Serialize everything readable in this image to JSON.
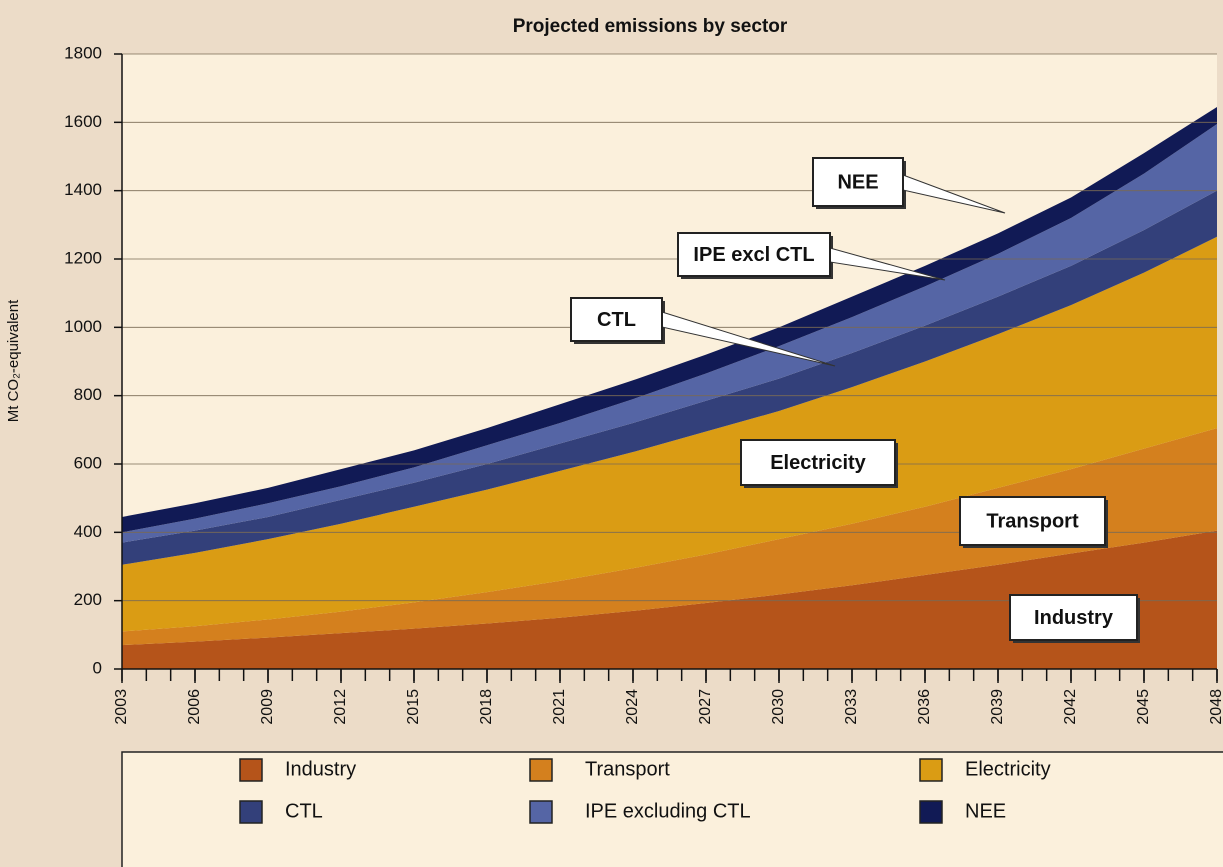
{
  "chart_data": {
    "type": "stacked_area",
    "title": "Projected emissions by sector",
    "y_label": "Mt CO₂-equivalent",
    "x": [
      2003,
      2006,
      2009,
      2012,
      2015,
      2018,
      2021,
      2024,
      2027,
      2030,
      2033,
      2036,
      2039,
      2042,
      2045,
      2048
    ],
    "xlim": [
      2003,
      2048
    ],
    "xticks": [
      2003,
      2006,
      2009,
      2012,
      2015,
      2018,
      2021,
      2024,
      2027,
      2030,
      2033,
      2036,
      2039,
      2042,
      2045,
      2048
    ],
    "ylim": [
      0,
      1800
    ],
    "yticks": [
      0,
      200,
      400,
      600,
      800,
      1000,
      1200,
      1400,
      1600,
      1800
    ],
    "grid": true,
    "series": [
      {
        "name": "Industry",
        "color": "#b5541a",
        "values": [
          70,
          80,
          92,
          105,
          118,
          133,
          150,
          170,
          193,
          218,
          245,
          275,
          305,
          338,
          370,
          405
        ]
      },
      {
        "name": "Transport",
        "color": "#d4801e",
        "values": [
          40,
          45,
          53,
          63,
          77,
          92,
          108,
          125,
          142,
          162,
          180,
          200,
          225,
          247,
          275,
          300
        ]
      },
      {
        "name": "Electricity",
        "color": "#da9c14",
        "values": [
          195,
          215,
          235,
          257,
          280,
          300,
          322,
          340,
          360,
          375,
          400,
          425,
          450,
          480,
          515,
          560
        ]
      },
      {
        "name": "CTL",
        "color": "#33407a",
        "values": [
          65,
          65,
          65,
          70,
          70,
          75,
          80,
          85,
          90,
          95,
          100,
          105,
          110,
          115,
          125,
          135
        ]
      },
      {
        "name": "IPE excluding CTL",
        "color": "#5565a5",
        "values": [
          30,
          35,
          40,
          40,
          45,
          55,
          60,
          70,
          80,
          95,
          105,
          115,
          125,
          140,
          165,
          195
        ]
      },
      {
        "name": "NEE",
        "color": "#111a55",
        "values": [
          45,
          45,
          45,
          50,
          50,
          50,
          55,
          55,
          55,
          55,
          60,
          60,
          60,
          60,
          60,
          50
        ]
      }
    ],
    "annotations": [
      "NEE",
      "IPE excl CTL",
      "CTL",
      "Electricity",
      "Transport",
      "Industry"
    ]
  }
}
